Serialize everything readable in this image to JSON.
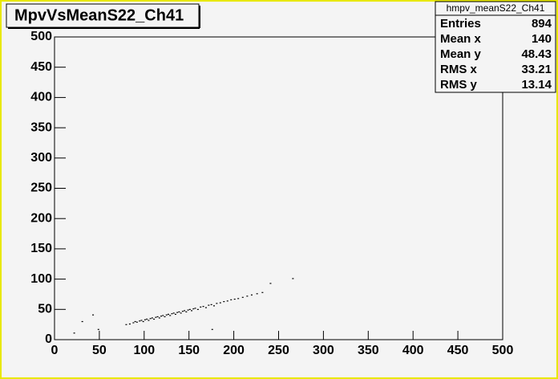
{
  "chart_data": {
    "type": "scatter",
    "title": "MpvVsMeanS22_Ch41",
    "series": [
      {
        "color": "#000000",
        "x": [
          80,
          84,
          88,
          90,
          92,
          95,
          97,
          99,
          101,
          103,
          105,
          107,
          109,
          111,
          113,
          115,
          117,
          119,
          121,
          123,
          125,
          127,
          129,
          131,
          133,
          135,
          137,
          139,
          141,
          143,
          145,
          147,
          149,
          151,
          153,
          155,
          157,
          160,
          163,
          166,
          169,
          172,
          175,
          178,
          181,
          185,
          189,
          193,
          197,
          201,
          205,
          210,
          215,
          220,
          226,
          232,
          241,
          266,
          31,
          43,
          49,
          176,
          22
        ],
        "values": [
          25,
          26,
          28,
          30,
          29,
          31,
          32,
          30,
          33,
          34,
          32,
          35,
          36,
          34,
          37,
          38,
          36,
          39,
          40,
          38,
          41,
          42,
          40,
          43,
          44,
          42,
          45,
          46,
          44,
          47,
          48,
          46,
          49,
          50,
          48,
          51,
          52,
          50,
          54,
          55,
          53,
          57,
          58,
          56,
          60,
          61,
          63,
          64,
          66,
          67,
          68,
          70,
          72,
          74,
          76,
          78,
          93,
          101,
          30,
          41,
          17,
          17,
          11
        ]
      }
    ],
    "xlim": [
      0,
      500
    ],
    "ylim": [
      0,
      500
    ],
    "xticks": [
      0,
      50,
      100,
      150,
      200,
      250,
      300,
      350,
      400,
      450,
      500
    ],
    "yticks": [
      0,
      50,
      100,
      150,
      200,
      250,
      300,
      350,
      400,
      450,
      500
    ],
    "stats": {
      "title": "hmpv_meanS22_Ch41",
      "rows": [
        {
          "label": "Entries",
          "value": 894
        },
        {
          "label": "Mean x",
          "value": 140
        },
        {
          "label": "Mean y",
          "value": 48.43
        },
        {
          "label": "RMS x",
          "value": 33.21
        },
        {
          "label": "RMS y",
          "value": 13.14
        }
      ]
    }
  }
}
